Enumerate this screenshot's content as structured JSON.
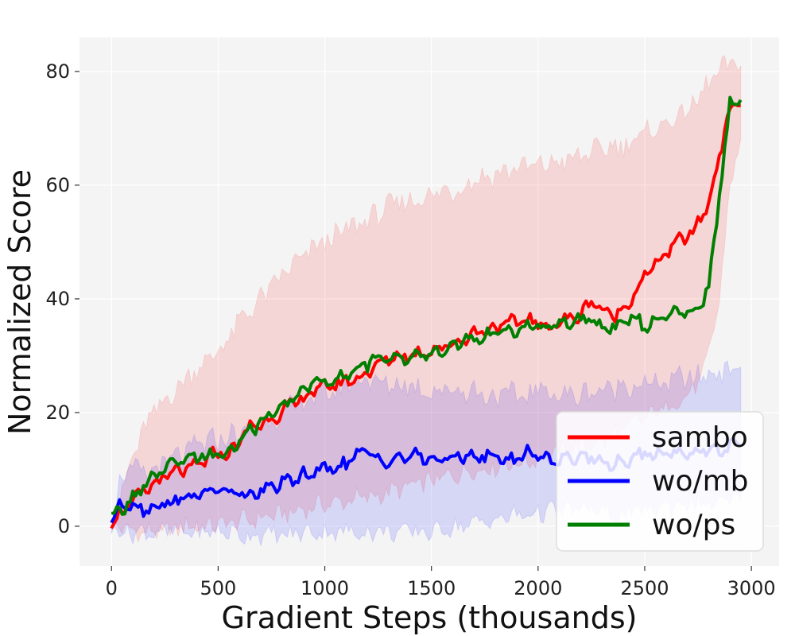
{
  "chart_data": {
    "type": "line",
    "xlabel": "Gradient Steps (thousands)",
    "ylabel": "Normalized Score",
    "xlim": [
      -150,
      3130
    ],
    "ylim": [
      -7,
      86
    ],
    "xticks": [
      0,
      500,
      1000,
      1500,
      2000,
      2500,
      3000
    ],
    "yticks": [
      0,
      20,
      40,
      60,
      80
    ],
    "grid": true,
    "legend_position": "bottom-right",
    "x": [
      0,
      50,
      100,
      150,
      200,
      250,
      300,
      350,
      400,
      450,
      500,
      550,
      600,
      650,
      700,
      750,
      800,
      850,
      900,
      950,
      1000,
      1050,
      1100,
      1150,
      1200,
      1250,
      1300,
      1350,
      1400,
      1450,
      1500,
      1550,
      1600,
      1650,
      1700,
      1750,
      1800,
      1850,
      1900,
      1950,
      2000,
      2050,
      2100,
      2150,
      2200,
      2250,
      2300,
      2350,
      2400,
      2450,
      2500,
      2550,
      2600,
      2650,
      2700,
      2750,
      2800,
      2850,
      2900,
      2950
    ],
    "series": [
      {
        "name": "sambo",
        "color": "#ff0000",
        "mean": [
          1,
          2.5,
          4.5,
          6,
          7.5,
          8.5,
          9.5,
          10,
          10.5,
          12,
          13,
          12.5,
          15,
          17.5,
          18,
          19,
          20,
          21.5,
          22.5,
          24,
          24.5,
          25,
          25.5,
          26,
          27,
          28.5,
          29.5,
          30,
          30,
          30.5,
          31,
          31.5,
          32,
          33,
          34,
          34.5,
          35,
          35.5,
          36,
          36.5,
          35.5,
          35,
          36,
          36.5,
          37,
          40,
          38,
          37,
          38,
          41,
          44,
          46,
          48,
          50,
          51,
          53,
          57,
          65,
          74,
          74
        ],
        "lower": [
          0,
          0,
          -1,
          -1,
          -1,
          -1,
          -0.5,
          0,
          0,
          0,
          0.5,
          0.5,
          1,
          1,
          1.5,
          2,
          2,
          2.5,
          3,
          3.5,
          4,
          4,
          4.5,
          5,
          5,
          5.5,
          6,
          6.5,
          7,
          7.5,
          8,
          8.5,
          9,
          9.5,
          10,
          10,
          10.5,
          11,
          11,
          11.5,
          12,
          12.5,
          13,
          13.5,
          14,
          14.5,
          15,
          16,
          17,
          18,
          19,
          20,
          21,
          22,
          23,
          25,
          30,
          40,
          60,
          68
        ],
        "upper": [
          2,
          6,
          12,
          17,
          20,
          22,
          24,
          26,
          28,
          29,
          31,
          33,
          36,
          38,
          40,
          42,
          44,
          46,
          47,
          49,
          50,
          51,
          52,
          53,
          54,
          55,
          56,
          57,
          57,
          58,
          58,
          59,
          59,
          60,
          61,
          61.5,
          62,
          62.5,
          63,
          63.5,
          63,
          64,
          64,
          64.5,
          65,
          66,
          66,
          67,
          67,
          68,
          69,
          70,
          71,
          72,
          73,
          75,
          78,
          80,
          81,
          81
        ]
      },
      {
        "name": "wo/mb",
        "color": "#0000ff",
        "mean": [
          1,
          4,
          4,
          3,
          3.5,
          4,
          4.5,
          5,
          5.5,
          6,
          6.5,
          6,
          5.5,
          5.5,
          6,
          7,
          7.5,
          8,
          9,
          9.5,
          10,
          10.5,
          11,
          12.5,
          13,
          12,
          11.5,
          12,
          12.5,
          12,
          12,
          11.5,
          12,
          12.5,
          12.5,
          12,
          12.5,
          11.5,
          12,
          13,
          12.5,
          12,
          11.5,
          12,
          12.5,
          12,
          11.5,
          11,
          11.5,
          12,
          12.5,
          12.5,
          13,
          13,
          13,
          13,
          13.5,
          13.5,
          14,
          14
        ],
        "lower": [
          0,
          -1,
          -1,
          -1,
          -1,
          -1,
          -1,
          -1,
          -1,
          -1,
          -1,
          -1,
          -1.5,
          -1.5,
          -1.5,
          -1.5,
          -1.5,
          -1.5,
          -1,
          -1,
          -1,
          -1,
          -1,
          -1,
          -1,
          -1,
          -1,
          -1,
          -1,
          -1,
          -1,
          -0.5,
          0,
          0,
          0.5,
          1,
          1,
          1.5,
          2,
          2,
          2.5,
          2.5,
          3,
          3,
          3,
          3,
          2.5,
          2,
          2,
          2.5,
          3,
          3,
          3.5,
          4,
          4,
          4,
          4,
          4,
          4.5,
          4.5
        ],
        "upper": [
          2,
          9,
          10,
          9,
          10,
          11,
          12,
          13,
          14,
          15,
          15,
          16,
          16,
          17,
          18,
          19,
          20,
          21,
          22,
          23,
          23,
          24,
          25,
          26,
          26,
          25,
          25,
          25,
          25,
          24,
          24,
          24,
          24,
          24,
          24,
          23,
          23,
          23,
          23,
          23,
          24,
          24,
          23,
          23,
          23,
          24,
          24,
          24,
          25,
          25,
          25,
          25,
          25,
          26,
          26,
          26,
          27,
          27,
          28,
          28
        ]
      },
      {
        "name": "wo/ps",
        "color": "#007f00",
        "mean": [
          1.5,
          3,
          5,
          7,
          8.5,
          10,
          11,
          11.5,
          12,
          12.5,
          12.5,
          13,
          15,
          17,
          18,
          19.5,
          21,
          22.5,
          24,
          25.5,
          25.5,
          26,
          26.5,
          28,
          28.5,
          29.5,
          30,
          30,
          29.5,
          30,
          30.5,
          31,
          32,
          32.5,
          33,
          33.5,
          34,
          34,
          34.5,
          35,
          35,
          35,
          35.5,
          36,
          36.5,
          36,
          34.5,
          35,
          36,
          37,
          35,
          36,
          37,
          38.5,
          38,
          38,
          42,
          58,
          74,
          75
        ]
      }
    ]
  },
  "legend": {
    "items": [
      {
        "label": "sambo",
        "color": "#ff0000"
      },
      {
        "label": "wo/mb",
        "color": "#0000ff"
      },
      {
        "label": "wo/ps",
        "color": "#007f00"
      }
    ]
  }
}
